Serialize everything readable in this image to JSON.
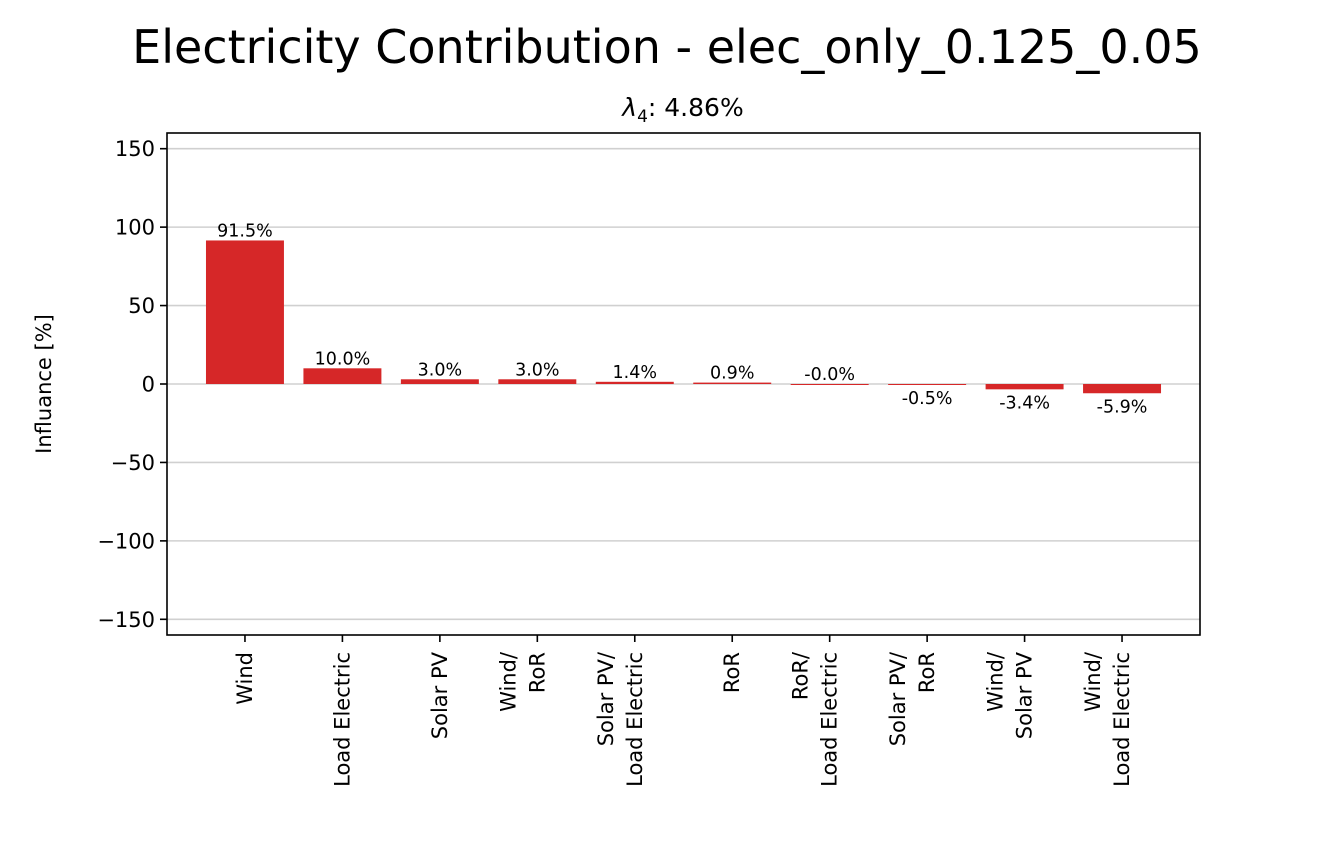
{
  "chart_data": {
    "type": "bar",
    "title": "Electricity Contribution - elec_only_0.125_0.05",
    "subtitle": {
      "symbol": "λ",
      "subscript": "4",
      "value": ": 4.86%"
    },
    "xlabel": "",
    "ylabel": "Influance [%]",
    "ylim": [
      -160,
      160
    ],
    "yticks": [
      {
        "value": 150,
        "label": "150"
      },
      {
        "value": 100,
        "label": "100"
      },
      {
        "value": 50,
        "label": "50"
      },
      {
        "value": 0,
        "label": "0"
      },
      {
        "value": -50,
        "label": "−50"
      },
      {
        "value": -100,
        "label": "−100"
      },
      {
        "value": -150,
        "label": "−150"
      }
    ],
    "grid": "horizontal",
    "bar_color": "#d62728",
    "categories": [
      [
        "Wind"
      ],
      [
        "Load Electric"
      ],
      [
        "Solar PV"
      ],
      [
        "Wind/",
        "RoR"
      ],
      [
        "Solar PV/",
        "Load Electric"
      ],
      [
        "RoR"
      ],
      [
        "RoR/",
        "Load Electric"
      ],
      [
        "Solar PV/",
        "RoR"
      ],
      [
        "Wind/",
        "Solar PV"
      ],
      [
        "Wind/",
        "Load Electric"
      ]
    ],
    "values": [
      91.5,
      10.0,
      3.0,
      3.0,
      1.4,
      0.9,
      -0.0,
      -0.5,
      -3.4,
      -5.9
    ],
    "value_labels": [
      "91.5%",
      "10.0%",
      "3.0%",
      "3.0%",
      "1.4%",
      "0.9%",
      "-0.0%",
      "-0.5%",
      "-3.4%",
      "-5.9%"
    ]
  }
}
